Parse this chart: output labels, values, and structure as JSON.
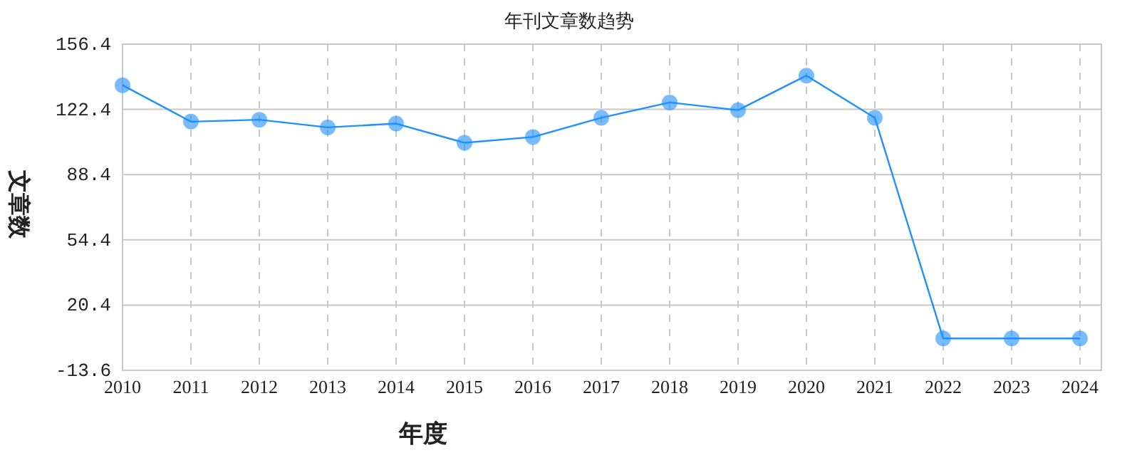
{
  "chart_data": {
    "type": "line",
    "title": "年刊文章数趋势",
    "xlabel": "年度",
    "ylabel": "文章数",
    "categories": [
      "2010",
      "2011",
      "2012",
      "2013",
      "2014",
      "2015",
      "2016",
      "2017",
      "2018",
      "2019",
      "2020",
      "2021",
      "2022",
      "2023",
      "2024"
    ],
    "series": [
      {
        "color": "#1e90ff",
        "values": [
          135,
          116,
          117,
          113,
          115,
          105,
          108,
          118,
          126,
          122,
          140,
          118,
          3,
          3,
          3
        ]
      }
    ],
    "ylim": [
      -13.6,
      156.4
    ],
    "yticks": [
      {
        "value": -13.6,
        "label": "-13.6"
      },
      {
        "value": 20.4,
        "label": "20.4"
      },
      {
        "value": 54.4,
        "label": "54.4"
      },
      {
        "value": 88.4,
        "label": "88.4"
      },
      {
        "value": 122.4,
        "label": "122.4"
      },
      {
        "value": 156.4,
        "label": "156.4"
      }
    ],
    "grid": true,
    "marker": "circle",
    "line_style": "solid"
  }
}
